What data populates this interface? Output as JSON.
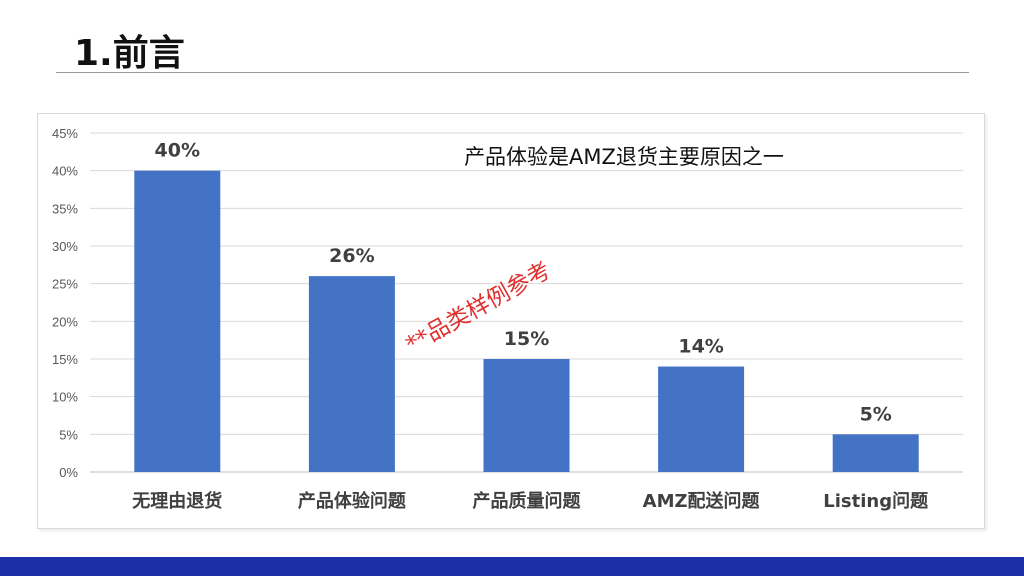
{
  "slide": {
    "title": "1.前言"
  },
  "chart_data": {
    "type": "bar",
    "title": "",
    "annotation": "产品体验是AMZ退货主要原因之一",
    "watermark": "**品类样例参考",
    "categories": [
      "无理由退货",
      "产品体验问题",
      "产品质量问题",
      "AMZ配送问题",
      "Listing问题"
    ],
    "values": [
      40,
      26,
      15,
      14,
      5
    ],
    "data_labels": [
      "40%",
      "26%",
      "15%",
      "14%",
      "5%"
    ],
    "y_ticks": [
      "0%",
      "5%",
      "10%",
      "15%",
      "20%",
      "25%",
      "30%",
      "35%",
      "40%",
      "45%"
    ],
    "ylim": [
      0,
      45
    ],
    "xlabel": "",
    "ylabel": "",
    "grid": true,
    "legend": "none",
    "colors": {
      "bar": "#4472c4",
      "grid": "#d9d9d9",
      "watermark": "#e03030",
      "footer": "#1d2fa6"
    }
  }
}
